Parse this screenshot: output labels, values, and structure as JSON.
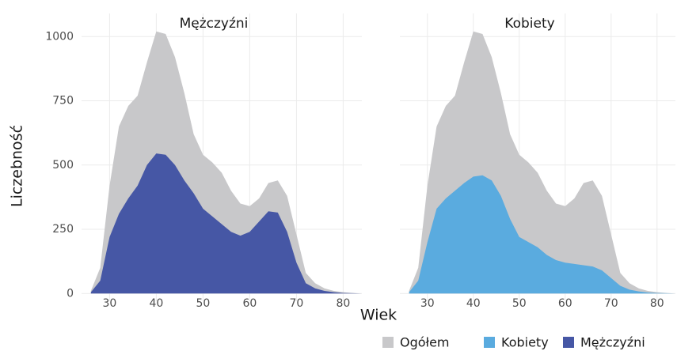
{
  "chart_data": [
    {
      "type": "area",
      "title": "Mężczyźni",
      "xlabel": "Wiek",
      "ylabel": "Liczebność",
      "x": [
        26,
        28,
        30,
        32,
        34,
        36,
        38,
        40,
        42,
        44,
        46,
        48,
        50,
        52,
        54,
        56,
        58,
        60,
        62,
        64,
        66,
        68,
        70,
        72,
        74,
        76,
        78,
        80,
        82,
        84
      ],
      "series": [
        {
          "name": "Ogółem",
          "color": "#c8c8ca",
          "values": [
            10,
            100,
            420,
            650,
            730,
            770,
            900,
            1020,
            1010,
            920,
            780,
            620,
            540,
            510,
            470,
            400,
            350,
            340,
            370,
            430,
            440,
            380,
            230,
            80,
            40,
            20,
            10,
            5,
            2,
            0
          ]
        },
        {
          "name": "Mężczyźni",
          "color": "#4657a5",
          "values": [
            5,
            50,
            220,
            310,
            370,
            420,
            500,
            545,
            540,
            500,
            440,
            390,
            330,
            300,
            270,
            240,
            225,
            240,
            280,
            320,
            315,
            240,
            120,
            40,
            20,
            10,
            5,
            2,
            1,
            0
          ]
        }
      ],
      "xlim": [
        24,
        84
      ],
      "xticks": [
        30,
        40,
        50,
        60,
        70,
        80
      ],
      "ylim": [
        -30,
        1090
      ],
      "yticks": [
        0,
        250,
        500,
        750,
        1000
      ],
      "grid": true
    },
    {
      "type": "area",
      "title": "Kobiety",
      "x": [
        26,
        28,
        30,
        32,
        34,
        36,
        38,
        40,
        42,
        44,
        46,
        48,
        50,
        52,
        54,
        56,
        58,
        60,
        62,
        64,
        66,
        68,
        70,
        72,
        74,
        76,
        78,
        80,
        82,
        84
      ],
      "series": [
        {
          "name": "Ogółem",
          "color": "#c8c8ca",
          "values": [
            10,
            100,
            420,
            650,
            730,
            770,
            900,
            1020,
            1010,
            920,
            780,
            620,
            540,
            510,
            470,
            400,
            350,
            340,
            370,
            430,
            440,
            380,
            230,
            80,
            40,
            20,
            10,
            5,
            2,
            0
          ]
        },
        {
          "name": "Kobiety",
          "color": "#5aabdf",
          "values": [
            5,
            50,
            200,
            330,
            370,
            400,
            430,
            455,
            460,
            440,
            380,
            290,
            220,
            200,
            180,
            150,
            130,
            120,
            115,
            110,
            105,
            90,
            60,
            30,
            15,
            8,
            4,
            2,
            1,
            0
          ]
        }
      ],
      "xlim": [
        24,
        84
      ],
      "xticks": [
        30,
        40,
        50,
        60,
        70,
        80
      ],
      "ylim": [
        -30,
        1090
      ],
      "yticks": [
        0,
        250,
        500,
        750,
        1000
      ],
      "grid": true
    }
  ]
}
